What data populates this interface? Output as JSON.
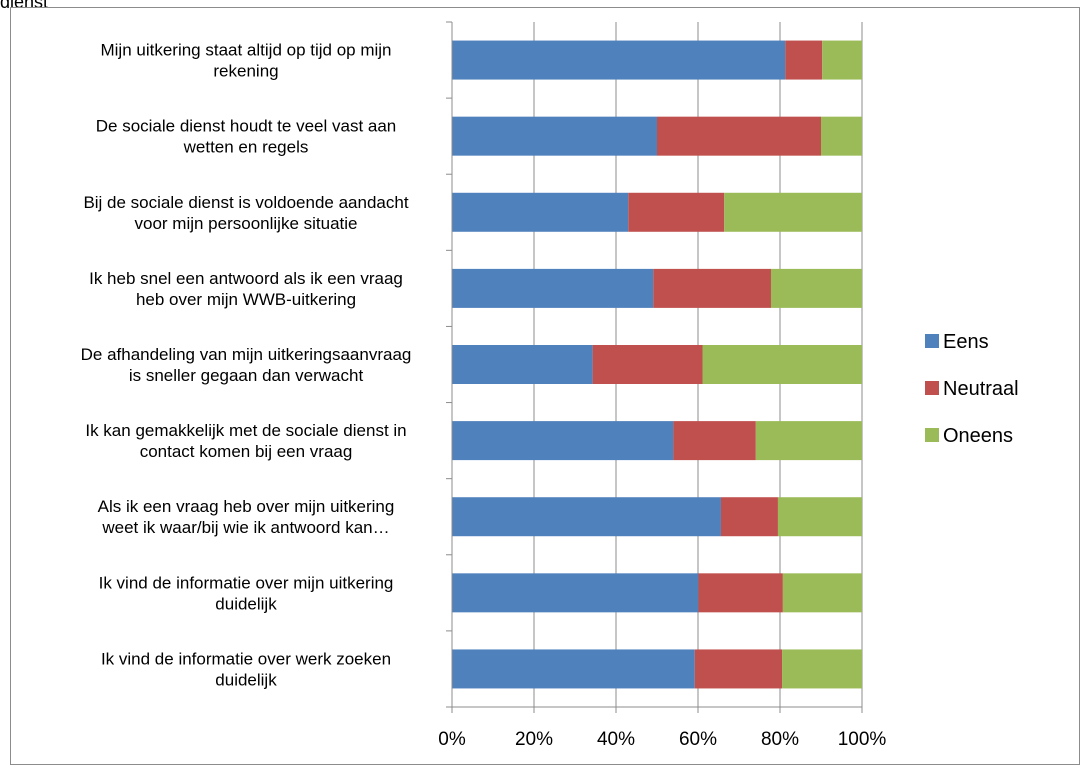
{
  "page": {
    "top_fragment": "dienst"
  },
  "chart_data": {
    "type": "bar",
    "orientation": "horizontal",
    "stacked": "percent",
    "title": "",
    "xlabel": "",
    "ylabel": "",
    "xlim": [
      0,
      100
    ],
    "x_ticks": [
      "0%",
      "20%",
      "40%",
      "60%",
      "80%",
      "100%"
    ],
    "grid": true,
    "legend": "right",
    "categories": [
      [
        "Mijn uitkering staat altijd op tijd op mijn",
        "rekening"
      ],
      [
        "De sociale dienst houdt te veel vast aan",
        "wetten en regels"
      ],
      [
        "Bij de sociale dienst is voldoende aandacht",
        "voor mijn persoonlijke situatie"
      ],
      [
        "Ik heb snel een antwoord als ik een vraag",
        "heb over mijn WWB-uitkering"
      ],
      [
        "De afhandeling van mijn uitkeringsaanvraag",
        "is sneller gegaan dan verwacht"
      ],
      [
        "Ik kan gemakkelijk met de sociale dienst in",
        "contact komen bij een vraag"
      ],
      [
        "Als ik een vraag heb over mijn uitkering",
        "weet ik waar/bij wie ik antwoord kan…"
      ],
      [
        "Ik vind de informatie over mijn uitkering",
        "duidelijk"
      ],
      [
        "Ik vind de informatie over werk zoeken",
        "duidelijk"
      ]
    ],
    "series": [
      {
        "name": "Eens",
        "color": "#4f81bd",
        "values": [
          81.3,
          50.0,
          43.0,
          49.1,
          34.3,
          54.0,
          65.6,
          60.1,
          59.2
        ]
      },
      {
        "name": "Neutraal",
        "color": "#c0504d",
        "values": [
          9.0,
          40.0,
          23.4,
          28.7,
          26.8,
          20.1,
          13.9,
          20.6,
          21.3
        ]
      },
      {
        "name": "Oneens",
        "color": "#9bbb59",
        "values": [
          9.7,
          10.0,
          33.6,
          22.2,
          38.9,
          25.9,
          20.5,
          19.3,
          19.5
        ]
      }
    ]
  }
}
